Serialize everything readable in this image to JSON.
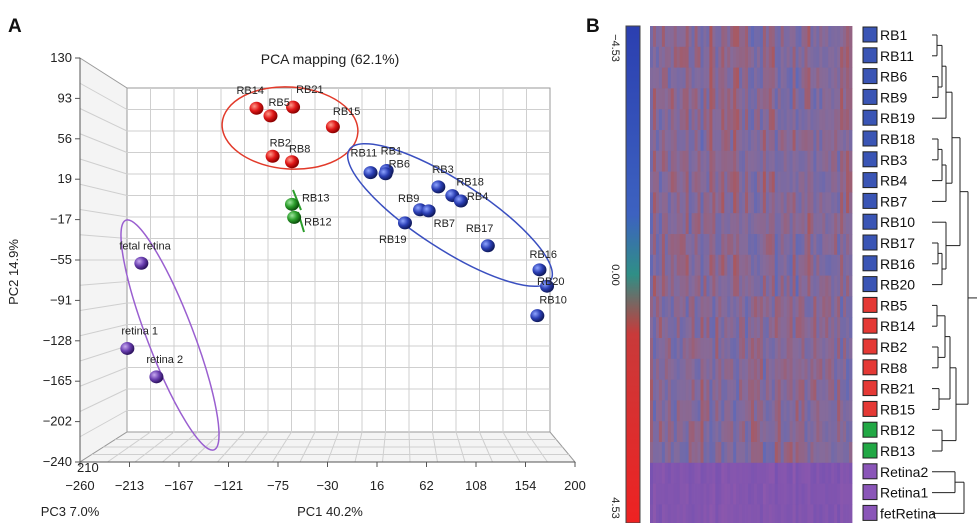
{
  "chart_data": [
    {
      "type": "scatter",
      "panel_label": "A",
      "title": "PCA mapping (62.1%)",
      "xlabel": "PC1 40.2%",
      "ylabel": "PC2 14.9%",
      "zlabel": "PC3 7.0%",
      "xlim": [
        -260,
        200
      ],
      "ylim": [
        -240,
        130
      ],
      "x_ticks": [
        "−260",
        "−213",
        "−167",
        "−121",
        "−75",
        "−30",
        "16",
        "62",
        "108",
        "154",
        "200"
      ],
      "y_ticks": [
        "130",
        "93",
        "56",
        "19",
        "−17",
        "−55",
        "−91",
        "−128",
        "−165",
        "−202",
        "−240"
      ],
      "z_tick_label": "210",
      "series": [
        {
          "color": "#e02020",
          "points": [
            {
              "label": "RB14",
              "x": -96,
              "y": 84
            },
            {
              "label": "RB5",
              "x": -83,
              "y": 77
            },
            {
              "label": "RB21",
              "x": -62,
              "y": 85
            },
            {
              "label": "RB15",
              "x": -25,
              "y": 67
            },
            {
              "label": "RB2",
              "x": -81,
              "y": 40
            },
            {
              "label": "RB8",
              "x": -63,
              "y": 35
            }
          ]
        },
        {
          "color": "#2a9d2a",
          "points": [
            {
              "label": "RB13",
              "x": -63,
              "y": -4
            },
            {
              "label": "RB12",
              "x": -61,
              "y": -16
            }
          ]
        },
        {
          "color": "#2b3fb5",
          "points": [
            {
              "label": "RB11",
              "x": 10,
              "y": 25
            },
            {
              "label": "RB1",
              "x": 25,
              "y": 27
            },
            {
              "label": "RB6",
              "x": 24,
              "y": 24
            },
            {
              "label": "RB3",
              "x": 73,
              "y": 12
            },
            {
              "label": "RB18",
              "x": 86,
              "y": 4
            },
            {
              "label": "RB4",
              "x": 94,
              "y": -1
            },
            {
              "label": "RB9",
              "x": 56,
              "y": -9
            },
            {
              "label": "RB7",
              "x": 64,
              "y": -10
            },
            {
              "label": "RB19",
              "x": 42,
              "y": -21
            },
            {
              "label": "RB17",
              "x": 119,
              "y": -42
            },
            {
              "label": "RB16",
              "x": 167,
              "y": -64
            },
            {
              "label": "RB20",
              "x": 174,
              "y": -79
            },
            {
              "label": "RB10",
              "x": 165,
              "y": -106
            }
          ]
        },
        {
          "color": "#6a3fb0",
          "points": [
            {
              "label": "fetal retina",
              "x": -203,
              "y": -58
            },
            {
              "label": "retina 1",
              "x": -216,
              "y": -136
            },
            {
              "label": "retina 2",
              "x": -189,
              "y": -162
            }
          ]
        }
      ]
    },
    {
      "type": "heatmap",
      "panel_label": "B",
      "colorbar_ticks": [
        "−4.53",
        "0.00",
        "4.53"
      ],
      "rows": [
        {
          "label": "RB1",
          "group_color": "#3a55b5"
        },
        {
          "label": "RB11",
          "group_color": "#3a55b5"
        },
        {
          "label": "RB6",
          "group_color": "#3a55b5"
        },
        {
          "label": "RB9",
          "group_color": "#3a55b5"
        },
        {
          "label": "RB19",
          "group_color": "#3a55b5"
        },
        {
          "label": "RB18",
          "group_color": "#3a55b5"
        },
        {
          "label": "RB3",
          "group_color": "#3a55b5"
        },
        {
          "label": "RB4",
          "group_color": "#3a55b5"
        },
        {
          "label": "RB7",
          "group_color": "#3a55b5"
        },
        {
          "label": "RB10",
          "group_color": "#3a55b5"
        },
        {
          "label": "RB17",
          "group_color": "#3a55b5"
        },
        {
          "label": "RB16",
          "group_color": "#3a55b5"
        },
        {
          "label": "RB20",
          "group_color": "#3a55b5"
        },
        {
          "label": "RB5",
          "group_color": "#e53935"
        },
        {
          "label": "RB14",
          "group_color": "#e53935"
        },
        {
          "label": "RB2",
          "group_color": "#e53935"
        },
        {
          "label": "RB8",
          "group_color": "#e53935"
        },
        {
          "label": "RB21",
          "group_color": "#e53935"
        },
        {
          "label": "RB15",
          "group_color": "#e53935"
        },
        {
          "label": "RB12",
          "group_color": "#22a845"
        },
        {
          "label": "RB13",
          "group_color": "#22a845"
        },
        {
          "label": "Retina2",
          "group_color": "#8a55b8"
        },
        {
          "label": "Retina1",
          "group_color": "#8a55b8"
        },
        {
          "label": "fetRetina",
          "group_color": "#8a55b8"
        }
      ]
    }
  ]
}
